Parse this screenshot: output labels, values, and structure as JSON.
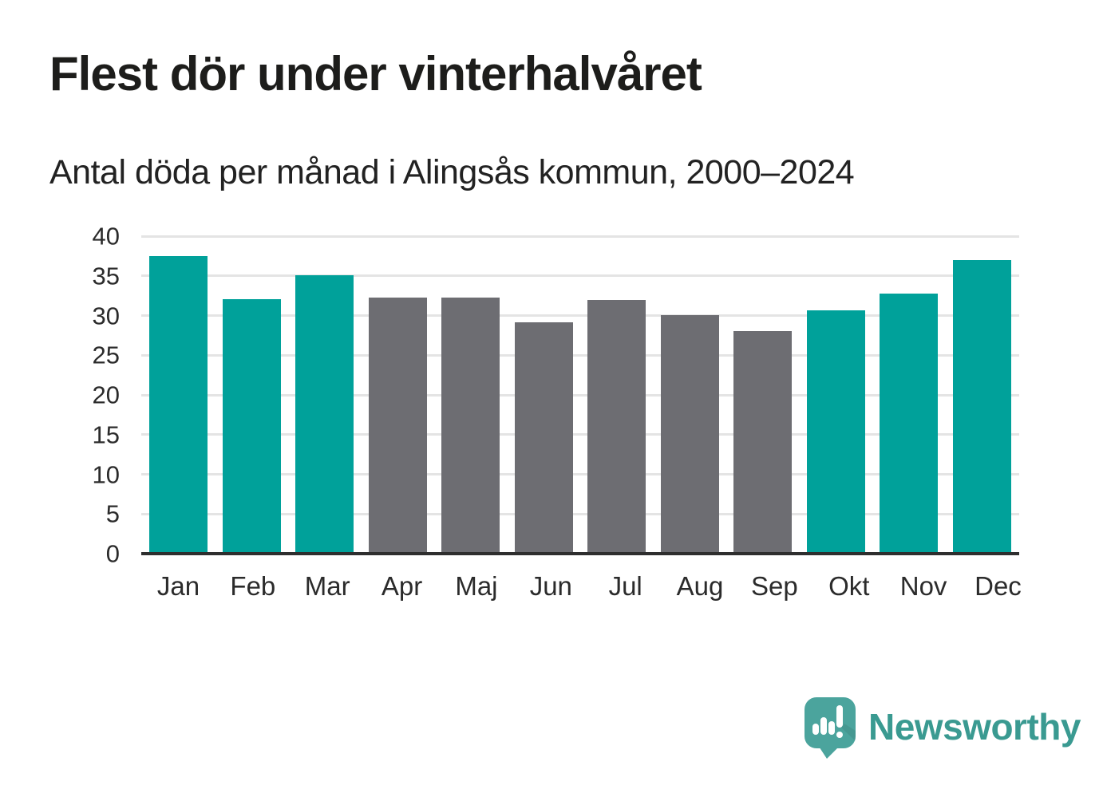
{
  "title": "Flest dör under vinterhalvåret",
  "subtitle": "Antal döda per månad i Alingsås kommun, 2000–2024",
  "chart_data": {
    "type": "bar",
    "categories": [
      "Jan",
      "Feb",
      "Mar",
      "Apr",
      "Maj",
      "Jun",
      "Jul",
      "Aug",
      "Sep",
      "Okt",
      "Nov",
      "Dec"
    ],
    "values": [
      37.5,
      32.1,
      35.1,
      32.3,
      32.3,
      29.1,
      32.0,
      30.1,
      28.0,
      30.7,
      32.8,
      37.0
    ],
    "highlighted": [
      true,
      true,
      true,
      false,
      false,
      false,
      false,
      false,
      false,
      true,
      true,
      true
    ],
    "title": "Flest dör under vinterhalvåret",
    "subtitle": "Antal döda per månad i Alingsås kommun, 2000–2024",
    "xlabel": "",
    "ylabel": "",
    "ylim": [
      0,
      40
    ],
    "yticks": [
      0,
      5,
      10,
      15,
      20,
      25,
      30,
      35,
      40
    ],
    "grid": true,
    "legend": "none",
    "colors": {
      "highlight_bar": "#00a19a",
      "default_bar": "#6d6d72",
      "gridline": "#e4e4e4",
      "axis_line": "#2e2e2e",
      "text": "#2b2b2b"
    }
  },
  "branding": {
    "logo_text": "Newsworthy",
    "logo_color": "#3a9a91",
    "icon": "newsworthy-speech-bubble-chart-icon",
    "icon_color": "#4ba49d"
  }
}
